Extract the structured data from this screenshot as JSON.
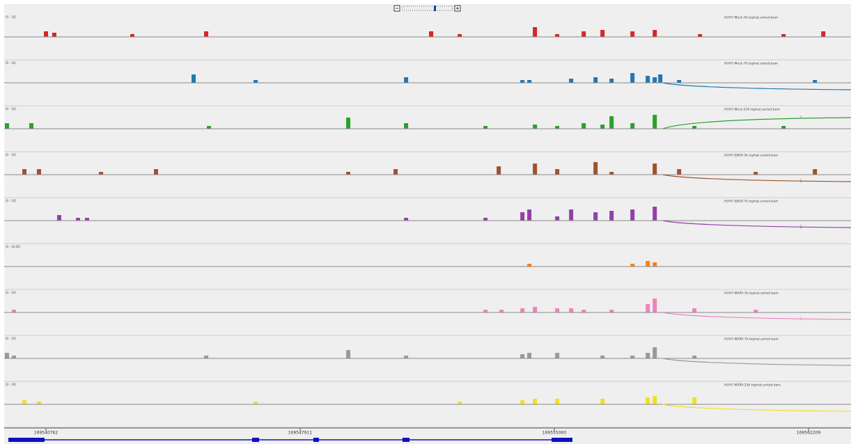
{
  "browser": {
    "xlim": [
      169539587,
      169563404
    ],
    "ticks": [
      169540762,
      169547911,
      169555060,
      169562209
    ],
    "tracks": [
      {
        "name": "HUH7-Mock-3h.tophat.sorted.bam",
        "range": "[0 - 10]",
        "color": "#d62728",
        "x": [
          169540762,
          169540997,
          169543191,
          169545268,
          169551595,
          169552398,
          169554514,
          169555141,
          169555886,
          169556415,
          169557257,
          169557884,
          169559157,
          169561508,
          169562624
        ],
        "values": [
          4,
          3,
          2,
          4,
          4,
          2,
          7,
          2,
          4,
          5,
          4,
          5,
          2,
          2,
          4
        ]
      },
      {
        "name": "HUH7-Mock-7h.tophat.sorted.bam",
        "range": "[0 - 10]",
        "color": "#1f77b4",
        "x": [
          169544915,
          169546659,
          169550890,
          169554162,
          169554357,
          169555533,
          169556219,
          169556669,
          169557257,
          169557688,
          169557884,
          169558040,
          169558569,
          169562389
        ],
        "values": [
          6,
          2,
          4,
          2,
          2,
          3,
          4,
          3,
          7,
          5,
          4,
          6,
          2,
          2
        ]
      },
      {
        "name": "HUH7-Mock-23h.tophat.sorted.bam",
        "range": "[0 - 10]",
        "color": "#2ca02c",
        "junction_label": "2",
        "x": [
          169539665,
          169540351,
          169545346,
          169549264,
          169550890,
          169553123,
          169554514,
          169555141,
          169555886,
          169556415,
          169556669,
          169557257,
          169557884,
          169559000,
          169561508
        ],
        "values": [
          4,
          4,
          2,
          8,
          4,
          2,
          3,
          2,
          4,
          3,
          9,
          4,
          10,
          2,
          2
        ]
      },
      {
        "name": "HUH7-EBOV-3h.tophat.sorted.bam",
        "range": "[0 - 10]",
        "color": "#a0522d",
        "junction_label": "1",
        "x": [
          169540155,
          169540566,
          169542310,
          169543857,
          169549264,
          169550596,
          169553496,
          169554514,
          169555141,
          169556219,
          169556669,
          169557884,
          169558569,
          169560724,
          169562389
        ],
        "values": [
          4,
          4,
          2,
          4,
          2,
          4,
          6,
          8,
          4,
          9,
          2,
          8,
          4,
          2,
          4
        ]
      },
      {
        "name": "HUH7-EBOV-7h.tophat.sorted.bam",
        "range": "[0 - 10]",
        "color": "#9440a8",
        "junction_label": "2",
        "x": [
          169541134,
          169541663,
          169541918,
          169550890,
          169553123,
          169554162,
          169554357,
          169555141,
          169555533,
          169556219,
          169556669,
          169557257,
          169557884
        ],
        "values": [
          4,
          2,
          2,
          2,
          2,
          6,
          8,
          3,
          8,
          6,
          7,
          8,
          10
        ]
      },
      {
        "range": "[0 - 10.00]",
        "color": "#ff7f0e",
        "x": [
          169554357,
          169557257,
          169557688,
          169557884
        ],
        "values": [
          2,
          2,
          4,
          3
        ]
      },
      {
        "name": "HUH7-MARV-3h.tophat.sorted.bam",
        "range": "[0 - 10]",
        "color": "#f082c0",
        "junction_label": "1",
        "x": [
          169539861,
          169553123,
          169553574,
          169554162,
          169554514,
          169555141,
          169555533,
          169555886,
          169556669,
          169557688,
          169557884,
          169559000,
          169560724
        ],
        "values": [
          2,
          2,
          2,
          3,
          4,
          3,
          3,
          2,
          2,
          6,
          10,
          3,
          2
        ]
      },
      {
        "name": "HUH7-MARV-7h.tophat.sorted.bam",
        "range": "[0 - 10]",
        "color": "#999999",
        "x": [
          169539665,
          169539861,
          169545268,
          169549264,
          169550890,
          169554162,
          169554357,
          169555141,
          169556415,
          169557257,
          169557688,
          169557884,
          169559000
        ],
        "values": [
          4,
          2,
          2,
          6,
          2,
          3,
          4,
          4,
          2,
          2,
          4,
          8,
          2
        ]
      },
      {
        "name": "HUH7-MARV-23h.tophat.sorted.bam",
        "range": "[0 - 10]",
        "color": "#f0e020",
        "x": [
          169540155,
          169540566,
          169546659,
          169552398,
          169554162,
          169554514,
          169555141,
          169556415,
          169557688,
          169557884,
          169559000
        ],
        "values": [
          3,
          2,
          2,
          2,
          3,
          4,
          4,
          4,
          5,
          6,
          5
        ]
      }
    ]
  }
}
